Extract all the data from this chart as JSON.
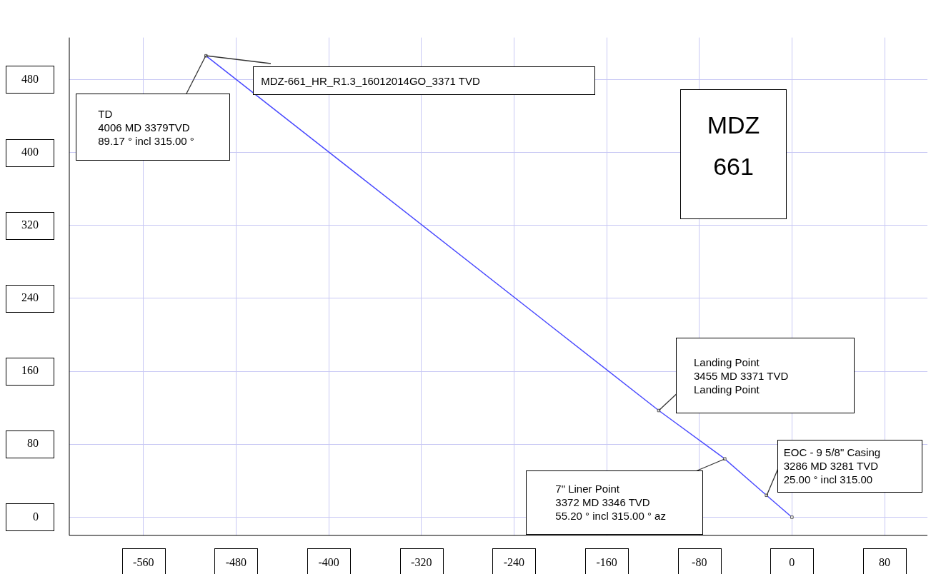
{
  "chart_data": {
    "type": "line",
    "x": [
      0,
      -22,
      -58,
      -115,
      -506
    ],
    "values": [
      0,
      24,
      64,
      117,
      506
    ],
    "color": "#4a4aff",
    "marker": "square",
    "line_style": "solid",
    "grid": true,
    "legend": false,
    "xlim": [
      -624,
      117
    ],
    "ylim": [
      -20,
      526
    ],
    "xticks": [
      -560,
      -480,
      -400,
      -320,
      -240,
      -160,
      -80,
      0,
      80
    ],
    "yticks": [
      0,
      80,
      160,
      240,
      320,
      400,
      480
    ],
    "annotations": [
      {
        "text": "TD\n4006 MD 3379TVD\n89.17 ° incl 315.00 °",
        "x": -506,
        "y": 506
      },
      {
        "text": "MDZ-661_HR_R1.3_16012014GO_3371 TVD",
        "x": -506,
        "y": 506
      },
      {
        "text": "Landing Point\n3455 MD 3371 TVD\nLanding Point",
        "x": -115,
        "y": 117
      },
      {
        "text": "7\" Liner Point\n3372 MD 3346 TVD\n55.20 ° incl 315.00 ° az",
        "x": -58,
        "y": 64
      },
      {
        "text": "EOC - 9 5/8\" Casing\n3286 MD 3281 TVD\n25.00 ° incl 315.00",
        "x": -22,
        "y": 24
      },
      "MDZ\n661"
    ]
  }
}
